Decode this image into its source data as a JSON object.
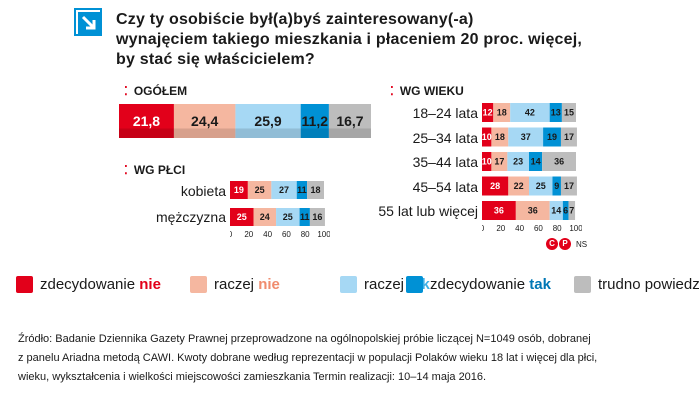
{
  "title": {
    "line1": "Czy ty osobiście był(a)byś zainteresowany(-a)",
    "line2": "wynajęciem takiego mieszkania i płaceniem 20 proc. więcej,",
    "line3": "by stać się właścicielem?"
  },
  "colors": {
    "zdecydowanie_nie": "#e2001a",
    "raczej_nie": "#f5b7a0",
    "raczej_tak": "#a6d8f4",
    "zdecydowanie_tak": "#0091d5",
    "trudno_powiedziec": "#bdbdbd",
    "accent": "#e2001a"
  },
  "legend": [
    {
      "prefix": "zdecydowanie ",
      "highlight": "nie",
      "color_key": "zdecydowanie_nie"
    },
    {
      "prefix": "raczej ",
      "highlight": "nie",
      "color_key": "raczej_nie"
    },
    {
      "prefix": "raczej ",
      "highlight": "tak",
      "color_key": "raczej_tak"
    },
    {
      "prefix": "zdecydowanie ",
      "highlight": "tak",
      "color_key": "zdecydowanie_tak"
    },
    {
      "prefix": "trudno powiedzieć",
      "highlight": "",
      "color_key": "trudno_powiedziec"
    }
  ],
  "chart_data": [
    {
      "type": "bar",
      "stacked": true,
      "orientation": "horizontal",
      "title": "OGÓŁEM",
      "categories": [
        "OGÓŁEM"
      ],
      "series": [
        {
          "name": "zdecydowanie nie",
          "values": [
            21.8
          ],
          "labels": [
            "21,8"
          ]
        },
        {
          "name": "raczej nie",
          "values": [
            24.4
          ],
          "labels": [
            "24,4"
          ]
        },
        {
          "name": "raczej tak",
          "values": [
            25.9
          ],
          "labels": [
            "25,9"
          ]
        },
        {
          "name": "zdecydowanie tak",
          "values": [
            11.2
          ],
          "labels": [
            "11,2"
          ]
        },
        {
          "name": "trudno powiedzieć",
          "values": [
            16.7
          ],
          "labels": [
            "16,7"
          ]
        }
      ]
    },
    {
      "type": "bar",
      "stacked": true,
      "orientation": "horizontal",
      "title": "WG PŁCI",
      "categories": [
        "kobieta",
        "mężczyzna"
      ],
      "xticks": [
        "0",
        "20",
        "40",
        "60",
        "80",
        "100"
      ],
      "xlim": [
        0,
        100
      ],
      "series": [
        {
          "name": "zdecydowanie nie",
          "values": [
            19,
            25
          ]
        },
        {
          "name": "raczej nie",
          "values": [
            25,
            24
          ]
        },
        {
          "name": "raczej tak",
          "values": [
            27,
            25
          ]
        },
        {
          "name": "zdecydowanie tak",
          "values": [
            11,
            11
          ]
        },
        {
          "name": "trudno powiedzieć",
          "values": [
            18,
            16
          ]
        }
      ]
    },
    {
      "type": "bar",
      "stacked": true,
      "orientation": "horizontal",
      "title": "WG WIEKU",
      "categories": [
        "18–24 lata",
        "25–34 lata",
        "35–44 lata",
        "45–54 lata",
        "55 lat lub więcej"
      ],
      "xticks": [
        "0",
        "20",
        "40",
        "60",
        "80",
        "100"
      ],
      "xlim": [
        0,
        100
      ],
      "series": [
        {
          "name": "zdecydowanie nie",
          "values": [
            12,
            10,
            10,
            28,
            36
          ]
        },
        {
          "name": "raczej nie",
          "values": [
            18,
            18,
            17,
            22,
            36
          ]
        },
        {
          "name": "raczej tak",
          "values": [
            42,
            37,
            23,
            25,
            14
          ]
        },
        {
          "name": "zdecydowanie tak",
          "values": [
            13,
            19,
            14,
            9,
            6
          ]
        },
        {
          "name": "trudno powiedzieć",
          "values": [
            15,
            17,
            36,
            17,
            7
          ]
        }
      ]
    }
  ],
  "badge": {
    "cp": "C",
    "p": "P",
    "ns": "NS"
  },
  "source": {
    "line1": "Źródło: Badanie Dziennika Gazety Prawnej  przeprowadzone na ogólnopolskiej próbie liczącej   N=1049 osób, dobranej",
    "line2": "z panelu Ariadna metodą CAWI.  Kwoty dobrane według reprezentacji w populacji   Polaków wieku 18 lat i więcej dla płci,",
    "line3": "wieku,  wykształcenia i wielkości miejscowości zamieszkania  Termin realizacji: 10–14 maja 2016."
  }
}
